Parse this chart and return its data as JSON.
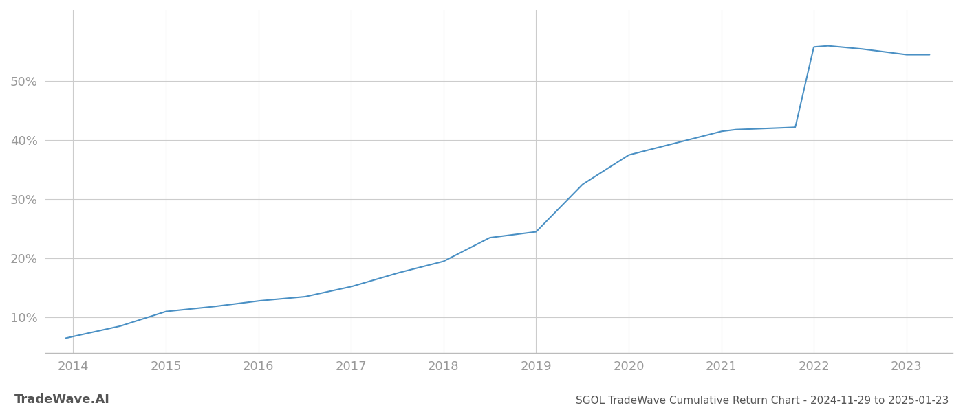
{
  "title": "SGOL TradeWave Cumulative Return Chart - 2024-11-29 to 2025-01-23",
  "watermark": "TradeWave.AI",
  "line_color": "#4a90c4",
  "background_color": "#ffffff",
  "grid_color": "#cccccc",
  "key_x": [
    2013.92,
    2014.5,
    2015.0,
    2015.5,
    2016.0,
    2016.5,
    2017.0,
    2017.5,
    2018.0,
    2018.5,
    2019.0,
    2019.5,
    2020.0,
    2020.5,
    2021.0,
    2021.15,
    2021.5,
    2021.8,
    2022.0,
    2022.15,
    2022.5,
    2022.75,
    2023.0,
    2023.25
  ],
  "key_y": [
    6.5,
    8.5,
    11.0,
    11.8,
    12.8,
    13.5,
    15.2,
    17.5,
    19.5,
    23.5,
    24.5,
    32.5,
    37.5,
    39.5,
    41.5,
    41.8,
    42.0,
    42.2,
    55.8,
    56.0,
    55.5,
    55.0,
    54.5,
    54.5
  ],
  "x_tick_labels": [
    "2014",
    "2015",
    "2016",
    "2017",
    "2018",
    "2019",
    "2020",
    "2021",
    "2022",
    "2023"
  ],
  "x_tick_positions": [
    2014,
    2015,
    2016,
    2017,
    2018,
    2019,
    2020,
    2021,
    2022,
    2023
  ],
  "y_ticks": [
    10,
    20,
    30,
    40,
    50
  ],
  "y_tick_labels": [
    "10%",
    "20%",
    "30%",
    "40%",
    "50%"
  ],
  "xlim": [
    2013.7,
    2023.5
  ],
  "ylim": [
    4,
    62
  ],
  "line_width": 1.5,
  "tick_color": "#999999",
  "title_color": "#555555",
  "watermark_color": "#555555",
  "title_fontsize": 11,
  "watermark_fontsize": 13,
  "tick_fontsize": 13
}
